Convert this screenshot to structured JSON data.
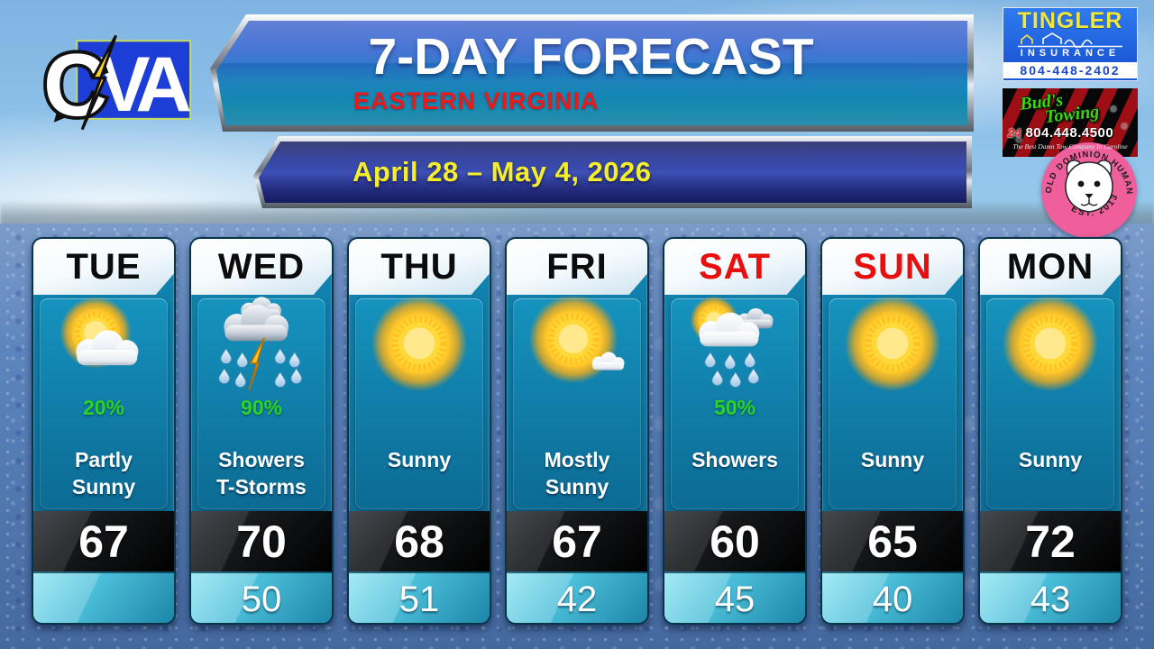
{
  "header": {
    "title": "7-DAY FORECAST",
    "subtitle": "EASTERN VIRGINIA",
    "date_range": "April 28 – May 4, 2026"
  },
  "station": {
    "logo_c": "C",
    "logo_va": "VA",
    "bolt_icon": "lightning-bolt-icon"
  },
  "ads": {
    "tingler": {
      "name": "TINGLER",
      "category": "INSURANCE",
      "phone": "804-448-2402",
      "icon": "house-outline-icon"
    },
    "buds": {
      "name_line1": "Bud's",
      "name_line2": "Towing",
      "hours": "24",
      "phone": "804.448.4500",
      "tagline": "The Best Damn Tow Company In Caroline"
    },
    "humane_society": {
      "ring_text": "OLD DOMINION HUMANE SOCIETY",
      "est_text": "EST. 2013",
      "icon": "pitbull-face-icon"
    }
  },
  "colors": {
    "weekend_red": "#e8100f",
    "weekday_black": "#0c0c0c",
    "precip_green": "#2bd32b",
    "date_yellow": "#f6ee2b",
    "subtitle_red": "#e81a1a"
  },
  "forecast": {
    "days": [
      {
        "label": "TUE",
        "label_color": "black",
        "icon": "partly-sunny",
        "precip": "20%",
        "condition": "Partly\nSunny",
        "high": "67",
        "low": ""
      },
      {
        "label": "WED",
        "label_color": "black",
        "icon": "thunderstorms",
        "precip": "90%",
        "condition": "Showers\nT-Storms",
        "high": "70",
        "low": "50"
      },
      {
        "label": "THU",
        "label_color": "black",
        "icon": "sunny",
        "precip": "",
        "condition": "Sunny",
        "high": "68",
        "low": "51"
      },
      {
        "label": "FRI",
        "label_color": "black",
        "icon": "mostly-sunny",
        "precip": "",
        "condition": "Mostly\nSunny",
        "high": "67",
        "low": "42"
      },
      {
        "label": "SAT",
        "label_color": "red",
        "icon": "showers",
        "precip": "50%",
        "condition": "Showers",
        "high": "60",
        "low": "45"
      },
      {
        "label": "SUN",
        "label_color": "red",
        "icon": "sunny",
        "precip": "",
        "condition": "Sunny",
        "high": "65",
        "low": "40"
      },
      {
        "label": "MON",
        "label_color": "black",
        "icon": "sunny",
        "precip": "",
        "condition": "Sunny",
        "high": "72",
        "low": "43"
      }
    ]
  }
}
